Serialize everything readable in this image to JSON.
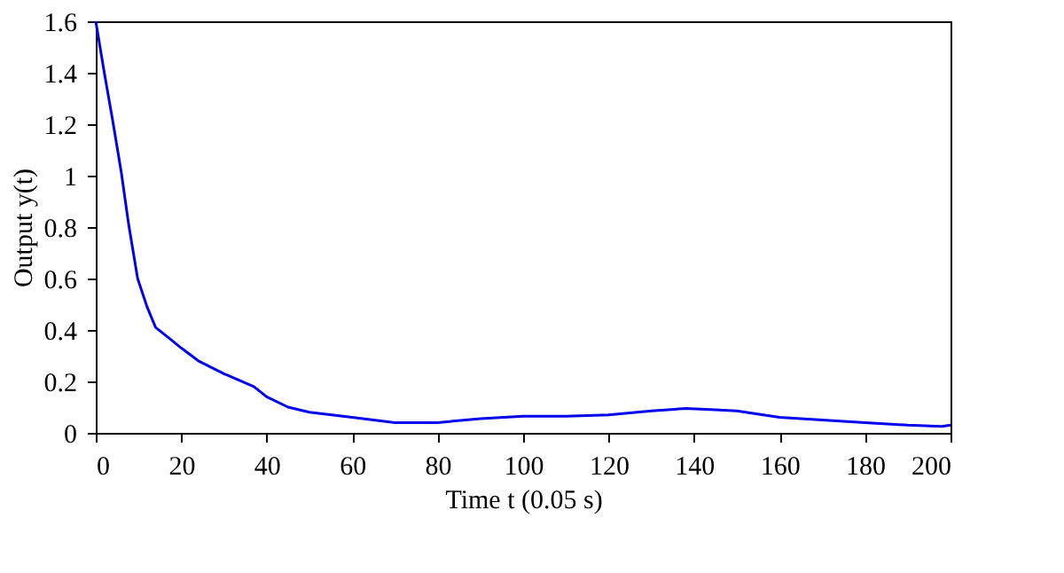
{
  "chart_data": {
    "type": "line",
    "xlabel": "Time t (0.05 s)",
    "ylabel": "Output y(t)",
    "x": [
      0,
      2,
      4,
      6,
      7.7,
      9.8,
      12,
      14,
      17,
      20,
      24,
      30,
      37,
      40,
      45,
      50,
      60,
      70,
      80,
      90,
      100,
      110,
      120,
      130,
      138,
      145,
      150,
      160,
      170,
      180,
      190,
      198,
      200
    ],
    "series": [
      {
        "color": "#0000ee",
        "values": [
          1.6,
          1.4,
          1.21,
          1.01,
          0.81,
          0.6,
          0.49,
          0.41,
          0.37,
          0.33,
          0.28,
          0.23,
          0.18,
          0.14,
          0.1,
          0.08,
          0.06,
          0.04,
          0.04,
          0.055,
          0.065,
          0.065,
          0.07,
          0.085,
          0.095,
          0.09,
          0.085,
          0.06,
          0.05,
          0.04,
          0.03,
          0.025,
          0.03
        ]
      }
    ],
    "xlim": [
      0,
      200
    ],
    "xticks": [
      0,
      20,
      40,
      60,
      80,
      100,
      120,
      140,
      160,
      180,
      200
    ],
    "ylim": [
      0,
      1.6
    ],
    "yticks": [
      0,
      0.2,
      0.4,
      0.6,
      0.8,
      1,
      1.2,
      1.4,
      1.6
    ],
    "grid": false,
    "marker": "none",
    "line_style": "solid"
  }
}
